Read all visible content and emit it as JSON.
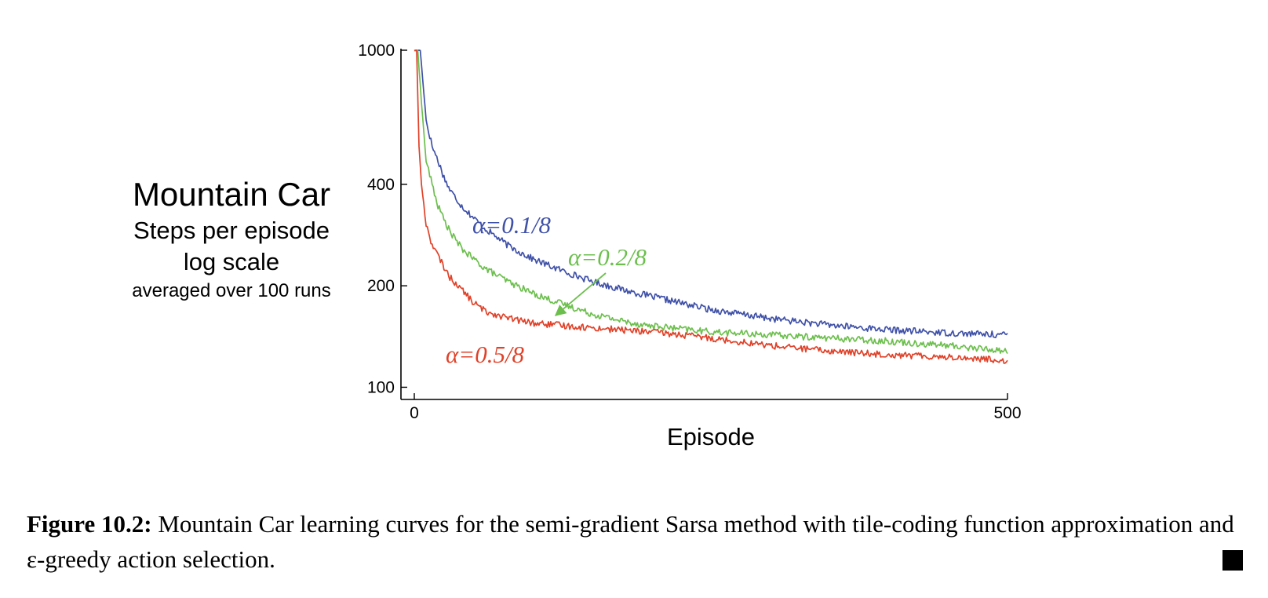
{
  "chart_data": {
    "type": "line",
    "title": "Mountain Car",
    "ylabel_lines": [
      "Steps per episode",
      "log scale",
      "averaged over 100 runs"
    ],
    "xlabel": "Episode",
    "xlim": [
      0,
      500
    ],
    "ylim": [
      92,
      1000
    ],
    "y_scale": "log",
    "x_ticks": [
      "0",
      "500"
    ],
    "y_ticks": [
      {
        "value": 100,
        "label": "100"
      },
      {
        "value": 200,
        "label": "200"
      },
      {
        "value": 400,
        "label": "400"
      },
      {
        "value": 1000,
        "label": "1000"
      }
    ],
    "grid": false,
    "series": [
      {
        "name": "α=0.1/8",
        "color": "#3f51a8",
        "points": [
          [
            0,
            1000
          ],
          [
            5,
            1000
          ],
          [
            10,
            620
          ],
          [
            15,
            520
          ],
          [
            20,
            470
          ],
          [
            25,
            420
          ],
          [
            30,
            385
          ],
          [
            40,
            345
          ],
          [
            50,
            318
          ],
          [
            60,
            295
          ],
          [
            80,
            262
          ],
          [
            100,
            240
          ],
          [
            120,
            225
          ],
          [
            150,
            206
          ],
          [
            180,
            193
          ],
          [
            200,
            186
          ],
          [
            250,
            170
          ],
          [
            300,
            160
          ],
          [
            350,
            153
          ],
          [
            400,
            148
          ],
          [
            450,
            145
          ],
          [
            500,
            143
          ]
        ]
      },
      {
        "name": "α=0.2/8",
        "color": "#6cbf4d",
        "points": [
          [
            0,
            1000
          ],
          [
            3,
            1000
          ],
          [
            6,
            700
          ],
          [
            10,
            470
          ],
          [
            15,
            400
          ],
          [
            20,
            345
          ],
          [
            25,
            315
          ],
          [
            30,
            290
          ],
          [
            40,
            258
          ],
          [
            50,
            240
          ],
          [
            60,
            225
          ],
          [
            80,
            205
          ],
          [
            100,
            190
          ],
          [
            120,
            179
          ],
          [
            150,
            165
          ],
          [
            180,
            156
          ],
          [
            200,
            152
          ],
          [
            250,
            146
          ],
          [
            300,
            143
          ],
          [
            350,
            140
          ],
          [
            400,
            137
          ],
          [
            450,
            133
          ],
          [
            500,
            128
          ]
        ]
      },
      {
        "name": "α=0.5/8",
        "color": "#e04128",
        "points": [
          [
            0,
            1000
          ],
          [
            2,
            1000
          ],
          [
            4,
            520
          ],
          [
            6,
            400
          ],
          [
            10,
            305
          ],
          [
            15,
            265
          ],
          [
            20,
            245
          ],
          [
            30,
            212
          ],
          [
            40,
            195
          ],
          [
            50,
            178
          ],
          [
            60,
            168
          ],
          [
            80,
            160
          ],
          [
            100,
            155
          ],
          [
            150,
            150
          ],
          [
            200,
            146
          ],
          [
            250,
            140
          ],
          [
            300,
            133
          ],
          [
            350,
            128
          ],
          [
            400,
            125
          ],
          [
            450,
            123
          ],
          [
            500,
            120
          ]
        ]
      }
    ],
    "annotations": [
      {
        "text": "α=0.1/8",
        "series": 0,
        "color": "#3f51a8"
      },
      {
        "text": "α=0.2/8",
        "series": 1,
        "color": "#6cbf4d",
        "arrow": true
      },
      {
        "text": "α=0.5/8",
        "series": 2,
        "color": "#e04128"
      }
    ]
  },
  "caption": {
    "label": "Figure 10.2:",
    "text": "Mountain Car learning curves for the semi-gradient Sarsa method with tile-coding function approximation and ε-greedy action selection."
  }
}
